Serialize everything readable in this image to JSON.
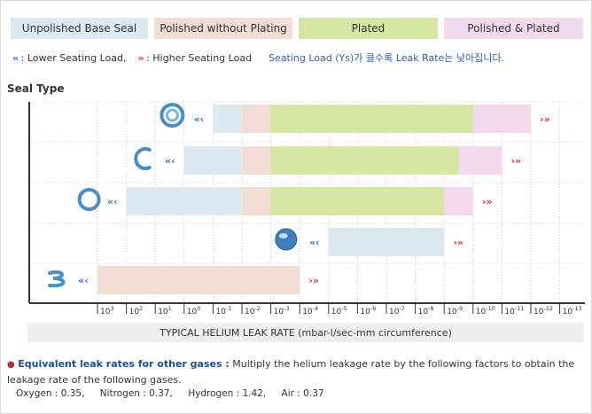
{
  "legend": {
    "items": [
      {
        "label": "Unpolished Base Seal",
        "color": "#dde9f1"
      },
      {
        "label": "Polished without Plating",
        "color": "#f1ddd4"
      },
      {
        "label": "Plated",
        "color": "#d5e7a2"
      },
      {
        "label": "Polished & Plated",
        "color": "#f2d9ec"
      }
    ],
    "lower_arrow": "«",
    "lower_text": ": Lower Seating Load,",
    "higher_arrow": "»",
    "higher_text": ": Higher Seating Load",
    "korean_note": "Seating Load (Ys)가 클수록 Leak Rate는 낮아집니다."
  },
  "chart_data": {
    "type": "bar",
    "title": "",
    "ylabel": "Seal Type",
    "xlabel": "TYPICAL HELIUM LEAK RATE (mbar-l/sec-mm circumference)",
    "x_exponents": [
      3,
      2,
      1,
      0,
      -1,
      -2,
      -3,
      -4,
      -5,
      -6,
      -7,
      -8,
      -9,
      -10,
      -11,
      -12,
      -13
    ],
    "x_tick_labels": [
      {
        "base": "10",
        "exp": "3"
      },
      {
        "base": "10",
        "exp": "2"
      },
      {
        "base": "10",
        "exp": "1"
      },
      {
        "base": "10",
        "exp": "0"
      },
      {
        "base": "10",
        "exp": "-1"
      },
      {
        "base": "10",
        "exp": "-2"
      },
      {
        "base": "10",
        "exp": "-3"
      },
      {
        "base": "10",
        "exp": "-4"
      },
      {
        "base": "10",
        "exp": "-5"
      },
      {
        "base": "10",
        "exp": "-6"
      },
      {
        "base": "10",
        "exp": "-7"
      },
      {
        "base": "10",
        "exp": "-8"
      },
      {
        "base": "10",
        "exp": "-9"
      },
      {
        "base": "10",
        "exp": "-10"
      },
      {
        "base": "10",
        "exp": "-11"
      },
      {
        "base": "10",
        "exp": "-12"
      },
      {
        "base": "10",
        "exp": "-13"
      }
    ],
    "rows": [
      {
        "seal_icon": "double-ring-seal-icon",
        "segments": [
          {
            "finish": "Unpolished Base Seal",
            "from_exp": -1,
            "to_exp": -2
          },
          {
            "finish": "Polished without Plating",
            "from_exp": -2,
            "to_exp": -3
          },
          {
            "finish": "Plated",
            "from_exp": -3,
            "to_exp": -10
          },
          {
            "finish": "Polished & Plated",
            "from_exp": -10,
            "to_exp": -12
          }
        ]
      },
      {
        "seal_icon": "c-ring-seal-icon",
        "segments": [
          {
            "finish": "Unpolished Base Seal",
            "from_exp": 0,
            "to_exp": -2
          },
          {
            "finish": "Polished without Plating",
            "from_exp": -2,
            "to_exp": -3
          },
          {
            "finish": "Plated",
            "from_exp": -3,
            "to_exp": -9.5
          },
          {
            "finish": "Polished & Plated",
            "from_exp": -9.5,
            "to_exp": -11
          }
        ]
      },
      {
        "seal_icon": "o-ring-seal-icon",
        "segments": [
          {
            "finish": "Unpolished Base Seal",
            "from_exp": 2,
            "to_exp": -2
          },
          {
            "finish": "Polished without Plating",
            "from_exp": -2,
            "to_exp": -3
          },
          {
            "finish": "Plated",
            "from_exp": -3,
            "to_exp": -9
          },
          {
            "finish": "Polished & Plated",
            "from_exp": -9,
            "to_exp": -10
          }
        ]
      },
      {
        "seal_icon": "solid-ball-seal-icon",
        "segments": [
          {
            "finish": "Unpolished Base Seal",
            "from_exp": -5,
            "to_exp": -9
          }
        ]
      },
      {
        "seal_icon": "spring-seal-icon",
        "segments": [
          {
            "finish": "Polished without Plating",
            "from_exp": 3,
            "to_exp": -4
          }
        ]
      }
    ]
  },
  "note": {
    "bullet": "●",
    "title": "Equivalent leak rates for other gases :",
    "text": "Multiply the helium leakage rate by the following factors to obtain the leakage rate of the following gases.",
    "factors": [
      "Oxygen : 0.35,",
      "Nitrogen : 0.37,",
      "Hydrogen : 1.42,",
      "Air : 0.37"
    ]
  }
}
